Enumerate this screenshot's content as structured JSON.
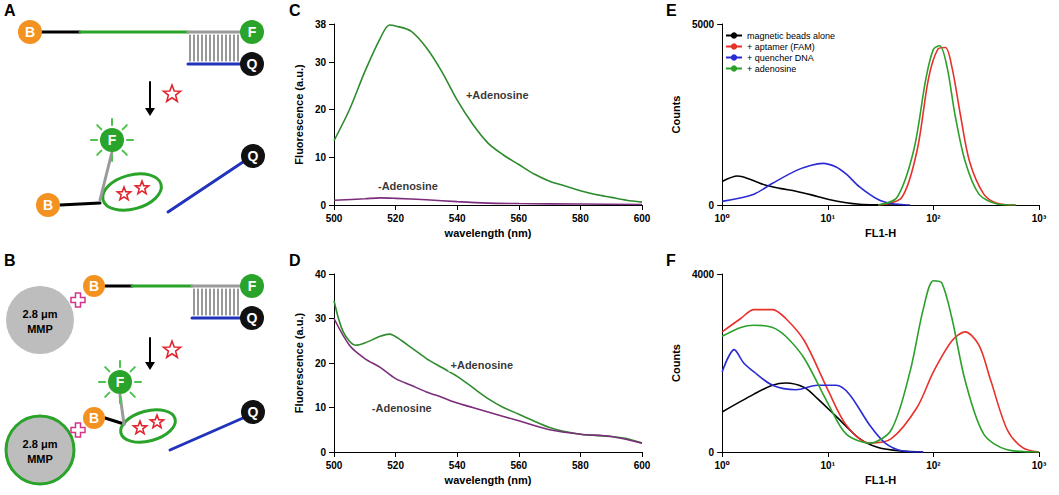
{
  "diagrams": [
    {
      "panel_label": "A",
      "biotin": "B",
      "fluorophore": "F",
      "quencher": "Q"
    },
    {
      "panel_label": "B",
      "biotin": "B",
      "fluorophore": "F",
      "quencher": "Q",
      "bead": [
        "2.8 μm",
        "MMP"
      ]
    }
  ],
  "chart_data": [
    {
      "panel_label": "C",
      "type": "line",
      "x_label": "wavelength (nm)",
      "y_label": "Fluorescence (a.u.)",
      "xlim": [
        500,
        600
      ],
      "xticks": [
        500,
        520,
        540,
        560,
        580,
        600
      ],
      "ylim": [
        0,
        38
      ],
      "yticks": [
        0,
        10,
        20,
        30,
        38
      ],
      "grid": false,
      "legend": false,
      "series": [
        {
          "color": "#2e8b2e",
          "x": [
            500,
            505,
            510,
            515,
            518,
            520,
            525,
            530,
            535,
            540,
            545,
            550,
            555,
            560,
            565,
            570,
            575,
            580,
            585,
            590,
            595,
            600
          ],
          "values": [
            13.5,
            20,
            28,
            35,
            37.8,
            37.6,
            36.5,
            33,
            28,
            22,
            17,
            13,
            10.5,
            8.5,
            6.5,
            5,
            4,
            3,
            2.2,
            1.6,
            1,
            0.6
          ]
        },
        {
          "color": "#7b2d7b",
          "x": [
            500,
            510,
            515,
            520,
            530,
            540,
            550,
            560,
            580,
            600
          ],
          "values": [
            1,
            1.3,
            1.5,
            1.4,
            1.1,
            0.7,
            0.4,
            0.3,
            0.2,
            0.1
          ]
        }
      ],
      "annotations": [
        {
          "text": "+Adenosine",
          "x": 553,
          "y": 23
        },
        {
          "text": "-Adenosine",
          "x": 524,
          "y": 4
        }
      ]
    },
    {
      "panel_label": "D",
      "type": "line",
      "x_label": "wavelength (nm)",
      "y_label": "Fluorescence (a.u.)",
      "xlim": [
        500,
        600
      ],
      "xticks": [
        500,
        520,
        540,
        560,
        580,
        600
      ],
      "ylim": [
        0,
        40
      ],
      "yticks": [
        0,
        10,
        20,
        30,
        40
      ],
      "grid": false,
      "legend": false,
      "series": [
        {
          "color": "#2e8b2e",
          "x": [
            500,
            503,
            507,
            510,
            515,
            518,
            522,
            525,
            530,
            535,
            540,
            545,
            550,
            555,
            560,
            570,
            580,
            590,
            595,
            600
          ],
          "values": [
            34,
            27,
            24,
            24.5,
            26,
            26.5,
            25,
            23.5,
            21,
            19,
            17,
            14.5,
            12,
            10,
            8.5,
            5.5,
            4,
            3.5,
            3,
            2
          ]
        },
        {
          "color": "#7b2d7b",
          "x": [
            500,
            505,
            510,
            515,
            520,
            525,
            530,
            535,
            540,
            545,
            550,
            560,
            570,
            580,
            590,
            600
          ],
          "values": [
            30,
            24,
            21,
            19,
            16.5,
            15,
            13.5,
            12.3,
            11,
            10,
            9,
            7,
            5,
            4,
            3.5,
            2
          ]
        }
      ],
      "annotations": [
        {
          "text": "+Adenosine",
          "x": 548,
          "y": 19.5
        },
        {
          "text": "-Adenosine",
          "x": 522,
          "y": 10
        }
      ]
    },
    {
      "panel_label": "E",
      "type": "line",
      "x_label": "FL1-H",
      "y_label": "Counts",
      "log": "x",
      "xlim": [
        1,
        1000
      ],
      "xticks": [
        {
          "value": 1,
          "label": "10⁰"
        },
        {
          "value": 10,
          "label": "10¹"
        },
        {
          "value": 100,
          "label": "10²"
        },
        {
          "value": 1000,
          "label": "10³"
        }
      ],
      "ylim": [
        0,
        5000
      ],
      "yticks": [
        0,
        5000
      ],
      "grid": false,
      "legend": "upper left",
      "series": [
        {
          "name": "magnetic beads alone",
          "color": "#000000",
          "x": [
            1,
            1.4,
            1.8,
            2.5,
            3.5,
            5,
            7,
            10,
            15,
            20,
            30,
            50
          ],
          "values": [
            650,
            800,
            720,
            560,
            460,
            380,
            280,
            160,
            60,
            20,
            5,
            0
          ]
        },
        {
          "name": "+ aptamer (FAM)",
          "color": "#e8312a",
          "x": [
            30,
            50,
            70,
            90,
            110,
            130,
            150,
            180,
            220,
            300,
            400,
            600
          ],
          "values": [
            0,
            200,
            1500,
            3500,
            4300,
            4350,
            3800,
            2500,
            1200,
            300,
            50,
            0
          ]
        },
        {
          "name": "+ quencher DNA",
          "color": "#2b2bd6",
          "x": [
            1,
            2,
            3,
            5,
            7,
            9,
            12,
            15,
            20,
            30,
            40,
            60
          ],
          "values": [
            100,
            300,
            600,
            950,
            1100,
            1150,
            1050,
            850,
            500,
            150,
            40,
            0
          ]
        },
        {
          "name": "+ adenosine",
          "color": "#2ca02c",
          "x": [
            30,
            45,
            65,
            85,
            100,
            115,
            135,
            160,
            200,
            270,
            400,
            600
          ],
          "values": [
            0,
            200,
            1500,
            3500,
            4300,
            4400,
            3800,
            2500,
            1200,
            300,
            30,
            0
          ]
        }
      ]
    },
    {
      "panel_label": "F",
      "type": "line",
      "x_label": "FL1-H",
      "y_label": "Counts",
      "log": "x",
      "xlim": [
        1,
        1000
      ],
      "xticks": [
        {
          "value": 1,
          "label": "10⁰"
        },
        {
          "value": 10,
          "label": "10¹"
        },
        {
          "value": 100,
          "label": "10²"
        },
        {
          "value": 1000,
          "label": "10³"
        }
      ],
      "ylim": [
        0,
        4000
      ],
      "yticks": [
        0,
        4000
      ],
      "grid": false,
      "legend": false,
      "series": [
        {
          "color": "#000000",
          "x": [
            1,
            2,
            3,
            4,
            6,
            8,
            12,
            20,
            30,
            50,
            80
          ],
          "values": [
            900,
            1300,
            1500,
            1550,
            1450,
            1200,
            800,
            300,
            100,
            20,
            0
          ]
        },
        {
          "color": "#e8312a",
          "x": [
            1,
            1.5,
            2,
            3,
            4,
            6,
            10,
            15,
            25,
            40,
            70,
            100,
            150,
            200,
            270,
            350,
            500,
            700,
            1000
          ],
          "values": [
            2700,
            3000,
            3200,
            3200,
            3000,
            2500,
            1400,
            600,
            200,
            300,
            1000,
            1800,
            2500,
            2700,
            2400,
            1600,
            500,
            100,
            0
          ]
        },
        {
          "color": "#2b2bd6",
          "x": [
            1,
            1.3,
            1.6,
            2,
            3,
            5,
            8,
            12,
            16,
            25,
            35,
            50,
            80
          ],
          "values": [
            1800,
            2300,
            2000,
            1800,
            1500,
            1400,
            1500,
            1500,
            1300,
            600,
            200,
            30,
            0
          ]
        },
        {
          "color": "#2ca02c",
          "x": [
            1,
            1.5,
            2,
            3,
            4,
            6,
            10,
            15,
            25,
            40,
            60,
            80,
            100,
            120,
            150,
            200,
            300,
            500,
            1000
          ],
          "values": [
            2600,
            2800,
            2850,
            2800,
            2600,
            2100,
            1100,
            400,
            200,
            500,
            1800,
            3200,
            3850,
            3800,
            3000,
            1600,
            400,
            50,
            0
          ]
        }
      ]
    }
  ]
}
